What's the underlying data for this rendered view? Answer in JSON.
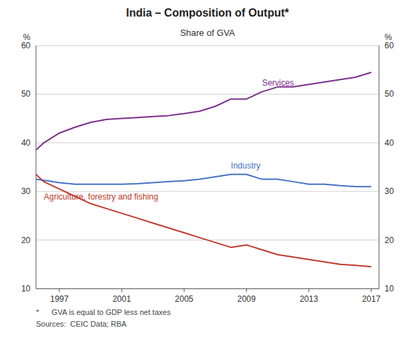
{
  "chart_data": {
    "type": "line",
    "title": "India – Composition of Output*",
    "subtitle": "Share of GVA",
    "ylabel": "%",
    "y2label": "%",
    "annotations": [
      "*      GVA is equal to GDP less net taxes",
      "Sources:  CEIC Data; RBA"
    ],
    "x": [
      1995.5,
      1996,
      1997,
      1998,
      1999,
      2000,
      2001,
      2002,
      2003,
      2004,
      2005,
      2006,
      2007,
      2008,
      2009,
      2010,
      2011,
      2012,
      2013,
      2014,
      2015,
      2016,
      2017
    ],
    "xlim": [
      1995.5,
      2017.5
    ],
    "xticks": [
      1997,
      2001,
      2005,
      2009,
      2013,
      2017
    ],
    "ylim": [
      10,
      60
    ],
    "yticks": [
      10,
      20,
      30,
      40,
      50,
      60
    ],
    "y2lim": [
      10,
      60
    ],
    "y2ticks": [
      10,
      20,
      30,
      40,
      50,
      60
    ],
    "grid": true,
    "series": [
      {
        "name": "Services",
        "color": "#7B2D8B",
        "values": [
          38.5,
          40.0,
          42.0,
          43.2,
          44.2,
          44.8,
          45.0,
          45.2,
          45.4,
          45.6,
          46.0,
          46.5,
          47.5,
          49.0,
          49.0,
          50.5,
          51.5,
          51.5,
          52.0,
          52.5,
          53.0,
          53.5,
          54.5
        ]
      },
      {
        "name": "Industry",
        "color": "#4472C4",
        "values": [
          32.5,
          32.3,
          31.8,
          31.5,
          31.5,
          31.5,
          31.5,
          31.6,
          31.8,
          32.0,
          32.2,
          32.5,
          33.0,
          33.5,
          33.5,
          32.5,
          32.5,
          32.0,
          31.5,
          31.5,
          31.2,
          31.0,
          31.0
        ]
      },
      {
        "name": "Agriculture, forestry and fishing",
        "color": "#C0392B",
        "values": [
          33.5,
          32.0,
          30.5,
          29.0,
          27.5,
          26.5,
          25.5,
          24.5,
          23.5,
          22.5,
          21.5,
          20.5,
          19.5,
          18.5,
          19.0,
          18.0,
          17.0,
          16.5,
          16.0,
          15.5,
          15.0,
          14.8,
          14.5
        ]
      }
    ]
  }
}
